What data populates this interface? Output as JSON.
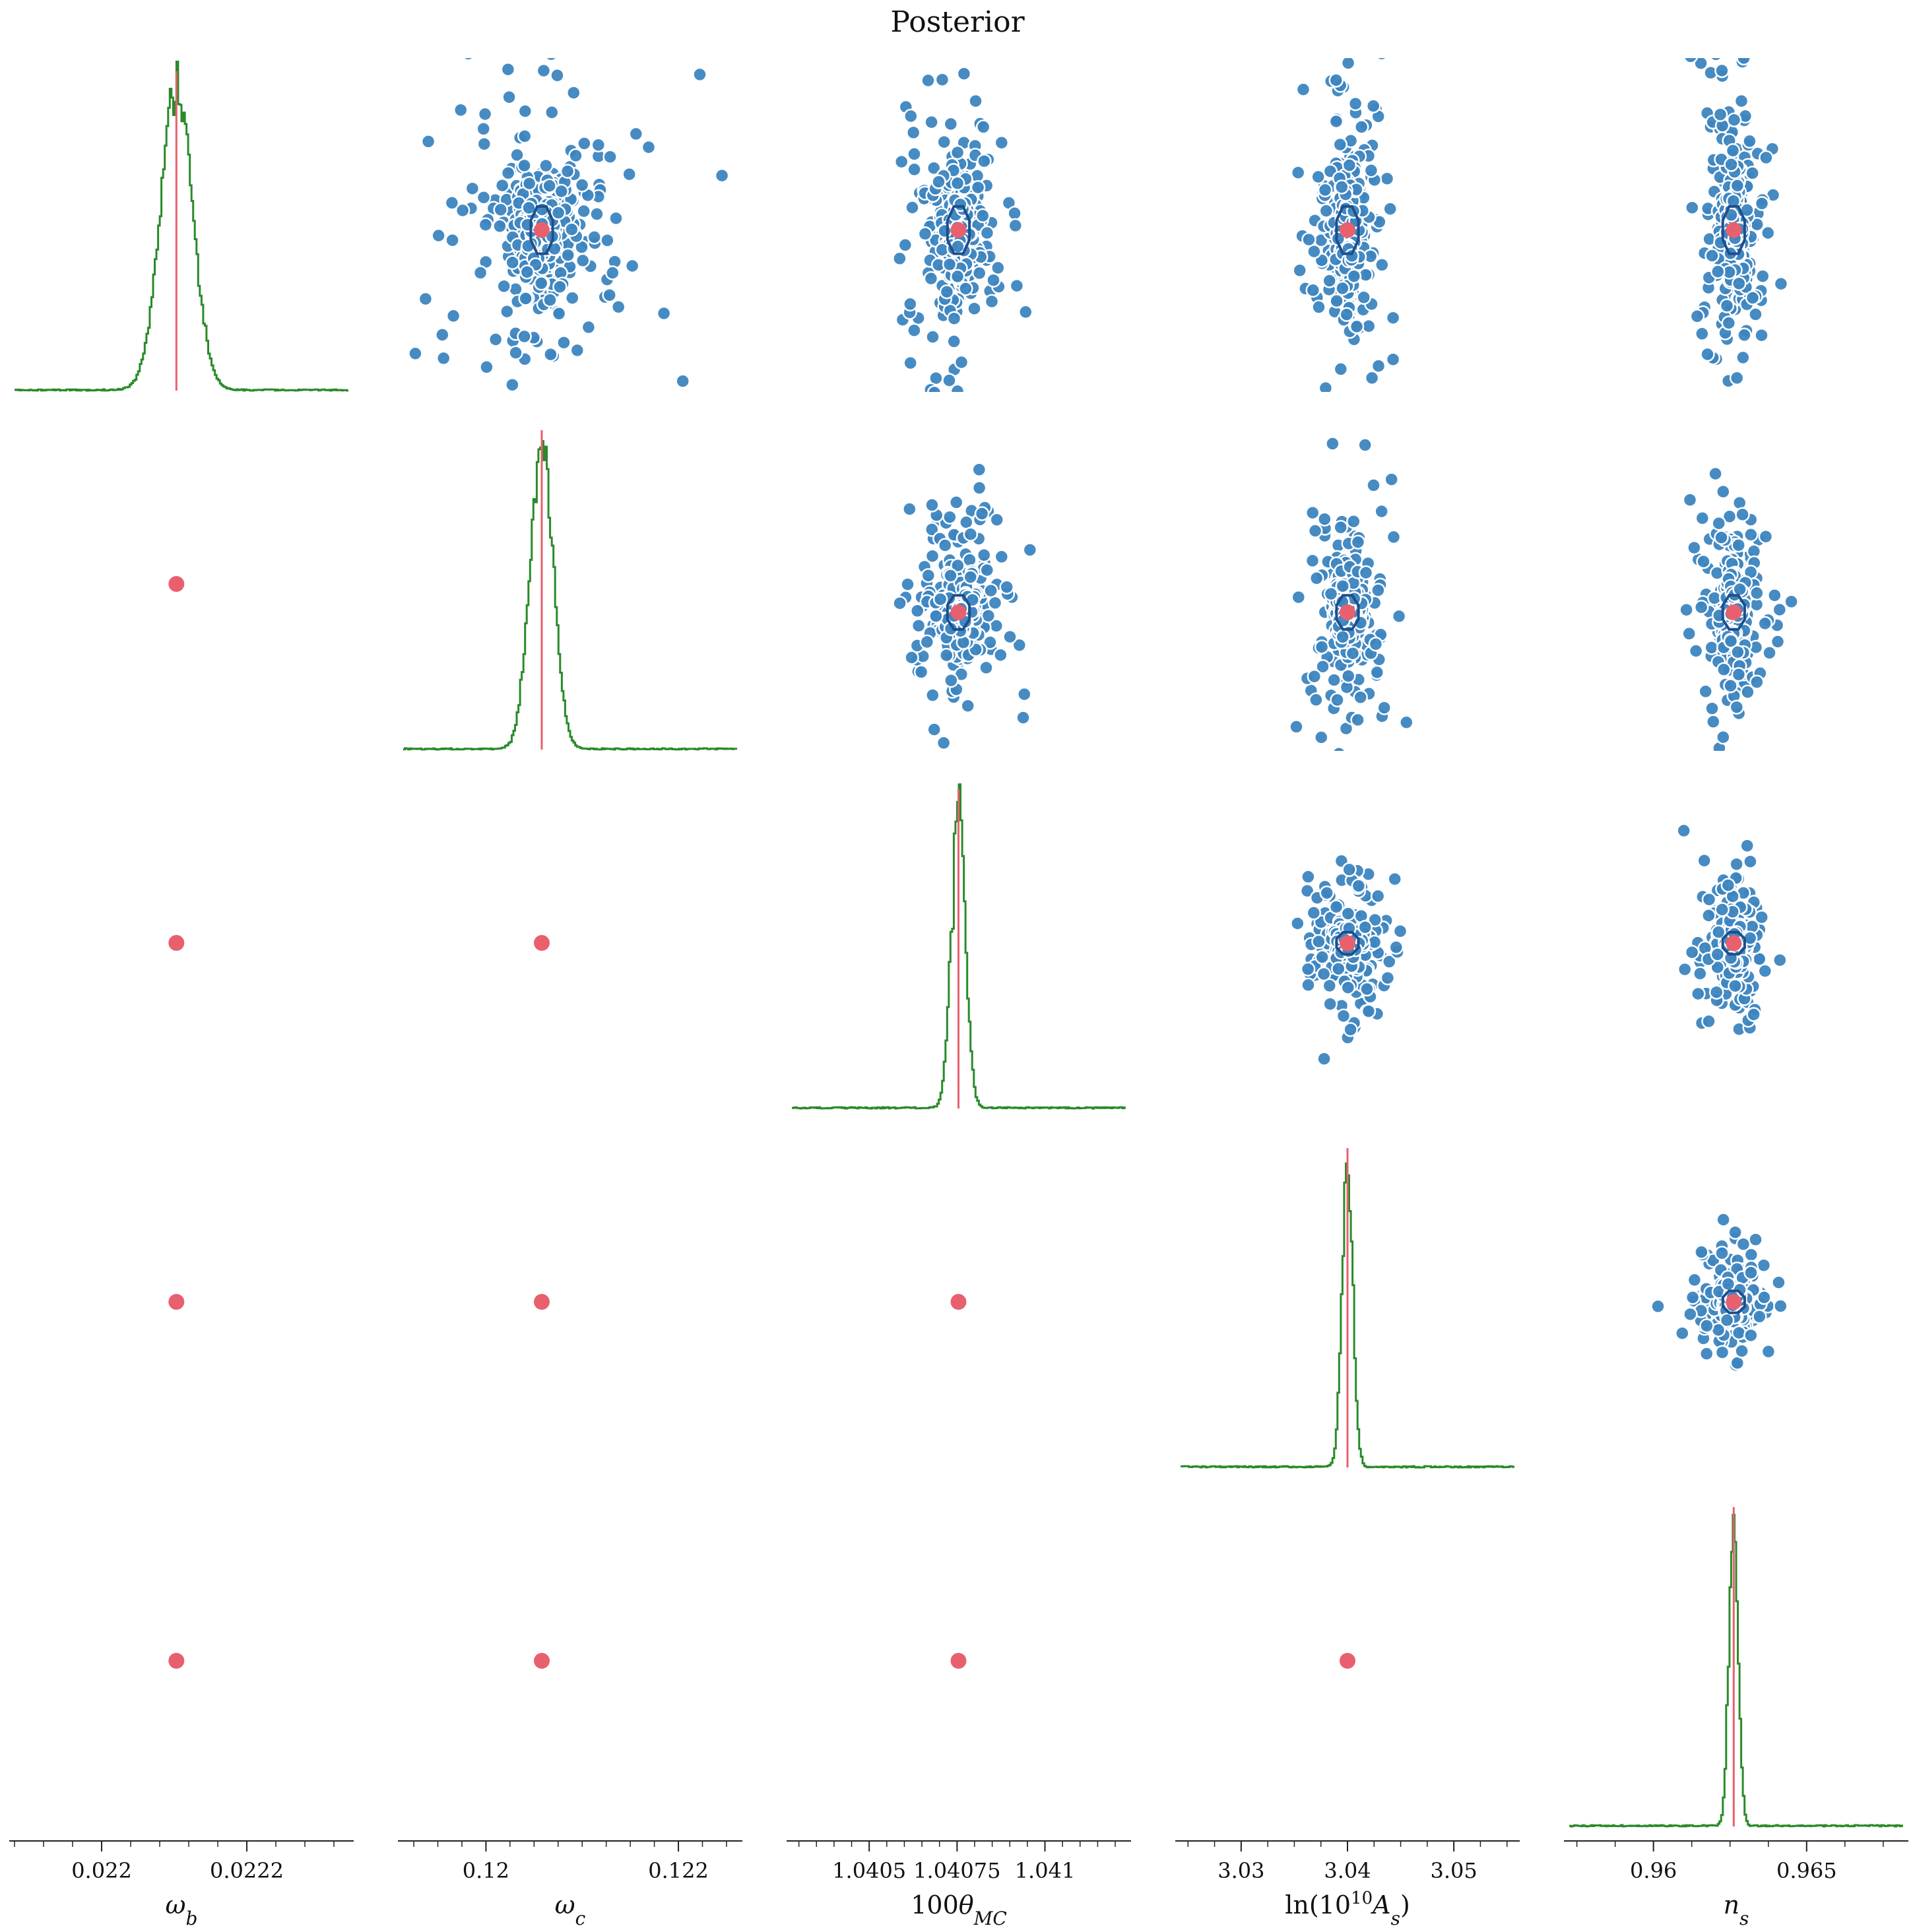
{
  "figure": {
    "title": "Posterior"
  },
  "colors": {
    "histogram": "#2a8a2a",
    "truth": "#e8606e",
    "scatter": "#3d85c0",
    "scatter_edge": "#ffffff",
    "contour": "#1f4e8c"
  },
  "chart_data": {
    "type": "scatter",
    "kind": "corner-plot",
    "title": "Posterior",
    "parameters": [
      {
        "key": "wb",
        "label": "ω_b",
        "truth": 0.022103,
        "range": [
          0.02188,
          0.02234
        ],
        "ticks": [
          "0.022",
          "0.0222"
        ],
        "tick_values": [
          0.022,
          0.0222
        ],
        "minor_step": 4e-05,
        "sigma": 2.2e-05
      },
      {
        "key": "wc",
        "label": "ω_c",
        "truth": 0.12058,
        "range": [
          0.11914,
          0.12261
        ],
        "ticks": [
          "0.12",
          "0.122"
        ],
        "tick_values": [
          0.12,
          0.122
        ],
        "minor_step": 0.00025,
        "sigma": 0.00012
      },
      {
        "key": "th",
        "label": "100θ_MC",
        "truth": 1.040754,
        "range": [
          1.04028,
          1.04123
        ],
        "ticks": [
          "1.0405",
          "1.04075",
          "1.041"
        ],
        "tick_values": [
          1.0405,
          1.04075,
          1.041
        ],
        "minor_step": 5e-05,
        "sigma": 2e-05
      },
      {
        "key": "As",
        "label": "ln(10^10 A_s)",
        "truth": 3.04,
        "range": [
          3.0243,
          3.0557
        ],
        "ticks": [
          "3.03",
          "3.04",
          "3.05"
        ],
        "tick_values": [
          3.03,
          3.04,
          3.05
        ],
        "minor_step": 0.0025,
        "sigma": 0.0005
      },
      {
        "key": "ns",
        "label": "n_s",
        "truth": 0.96262,
        "range": [
          0.95725,
          0.96815
        ],
        "ticks": [
          "0.96",
          "0.965"
        ],
        "tick_values": [
          0.96,
          0.965
        ],
        "minor_step": 0.00125,
        "sigma": 0.00015
      }
    ],
    "panels": {
      "diagonal": "histogram with true-value line",
      "upper": "scatter of samples with 68% contour and true-value point",
      "lower": "true-value point"
    }
  }
}
